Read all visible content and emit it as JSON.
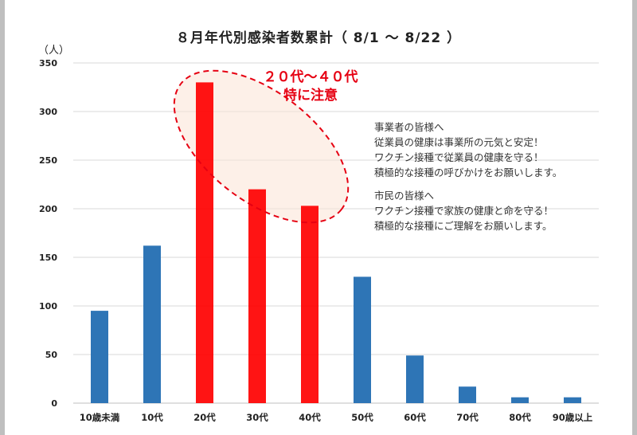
{
  "chart_data": {
    "type": "bar",
    "title": "８月年代別感染者数累計（ 8/1 〜 8/22 ）",
    "ylabel": "（人）",
    "xlabel": "",
    "ylim": [
      0,
      350
    ],
    "yticks": [
      0,
      50,
      100,
      150,
      200,
      250,
      300,
      350
    ],
    "categories": [
      "10歳未満",
      "10代",
      "20代",
      "30代",
      "40代",
      "50代",
      "60代",
      "70代",
      "80代",
      "90歳以上"
    ],
    "values": [
      95,
      162,
      330,
      220,
      203,
      130,
      49,
      17,
      6,
      6
    ],
    "highlighted": [
      "20代",
      "30代",
      "40代"
    ],
    "grid": true,
    "annotation": {
      "line1": "２０代〜４０代",
      "line2": "特に注意"
    }
  },
  "colors": {
    "bar": "#2e75b6",
    "highlight_bar": "#ff0000",
    "callout": "#e60012",
    "ellipse_fill": "#fbe4d5",
    "grid": "#d9d9d9"
  },
  "notes": {
    "business": [
      "事業者の皆様へ",
      "従業員の健康は事業所の元気と安定！",
      "ワクチン接種で従業員の健康を守る！",
      "積極的な接種の呼びかけをお願いします。"
    ],
    "citizens": [
      "市民の皆様へ",
      "ワクチン接種で家族の健康と命を守る！",
      "積極的な接種にご理解をお願いします。"
    ]
  }
}
